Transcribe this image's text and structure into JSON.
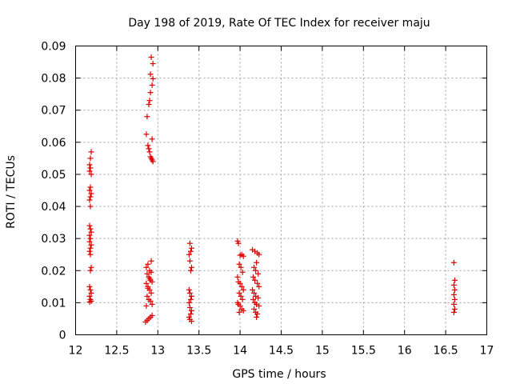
{
  "chart_data": {
    "type": "scatter",
    "title": "Day 198 of 2019, Rate Of TEC Index for receiver maju",
    "xlabel": "GPS time / hours",
    "ylabel": "ROTI / TECUs",
    "xlim": [
      12,
      17
    ],
    "ylim": [
      0,
      0.09
    ],
    "grid": true,
    "marker": "+",
    "marker_color": "#dd0000",
    "x_ticks": [
      {
        "value": 12,
        "label": "12"
      },
      {
        "value": 12.5,
        "label": "12.5"
      },
      {
        "value": 13,
        "label": "13"
      },
      {
        "value": 13.5,
        "label": "13.5"
      },
      {
        "value": 14,
        "label": "14"
      },
      {
        "value": 14.5,
        "label": "14.5"
      },
      {
        "value": 15,
        "label": "15"
      },
      {
        "value": 15.5,
        "label": "15.5"
      },
      {
        "value": 16,
        "label": "16"
      },
      {
        "value": 16.5,
        "label": "16.5"
      },
      {
        "value": 17,
        "label": "17"
      }
    ],
    "y_ticks": [
      {
        "value": 0,
        "label": "0"
      },
      {
        "value": 0.01,
        "label": "0.01"
      },
      {
        "value": 0.02,
        "label": "0.02"
      },
      {
        "value": 0.03,
        "label": "0.03"
      },
      {
        "value": 0.04,
        "label": "0.04"
      },
      {
        "value": 0.05,
        "label": "0.05"
      },
      {
        "value": 0.06,
        "label": "0.06"
      },
      {
        "value": 0.07,
        "label": "0.07"
      },
      {
        "value": 0.08,
        "label": "0.08"
      },
      {
        "value": 0.09,
        "label": "0.09"
      }
    ],
    "series": [
      {
        "name": "ROTI",
        "points": [
          [
            12.19,
            0.057
          ],
          [
            12.18,
            0.055
          ],
          [
            12.17,
            0.053
          ],
          [
            12.18,
            0.052
          ],
          [
            12.17,
            0.051
          ],
          [
            12.19,
            0.05
          ],
          [
            12.18,
            0.046
          ],
          [
            12.17,
            0.045
          ],
          [
            12.19,
            0.044
          ],
          [
            12.18,
            0.043
          ],
          [
            12.17,
            0.042
          ],
          [
            12.18,
            0.04
          ],
          [
            12.17,
            0.034
          ],
          [
            12.18,
            0.033
          ],
          [
            12.19,
            0.032
          ],
          [
            12.17,
            0.031
          ],
          [
            12.18,
            0.03
          ],
          [
            12.17,
            0.029
          ],
          [
            12.19,
            0.028
          ],
          [
            12.18,
            0.027
          ],
          [
            12.17,
            0.026
          ],
          [
            12.18,
            0.025
          ],
          [
            12.19,
            0.021
          ],
          [
            12.18,
            0.02
          ],
          [
            12.17,
            0.015
          ],
          [
            12.18,
            0.014
          ],
          [
            12.19,
            0.013
          ],
          [
            12.17,
            0.012
          ],
          [
            12.18,
            0.011
          ],
          [
            12.19,
            0.0105
          ],
          [
            12.17,
            0.0102
          ],
          [
            12.92,
            0.0865
          ],
          [
            12.94,
            0.0845
          ],
          [
            12.91,
            0.0812
          ],
          [
            12.94,
            0.0798
          ],
          [
            12.93,
            0.0778
          ],
          [
            12.91,
            0.0755
          ],
          [
            12.9,
            0.073
          ],
          [
            12.89,
            0.0718
          ],
          [
            12.87,
            0.068
          ],
          [
            12.86,
            0.0625
          ],
          [
            12.93,
            0.061
          ],
          [
            12.88,
            0.059
          ],
          [
            12.89,
            0.058
          ],
          [
            12.9,
            0.057
          ],
          [
            12.91,
            0.0555
          ],
          [
            12.92,
            0.055
          ],
          [
            12.93,
            0.0545
          ],
          [
            12.94,
            0.054
          ],
          [
            12.86,
            0.021
          ],
          [
            12.88,
            0.022
          ],
          [
            12.9,
            0.02
          ],
          [
            12.92,
            0.023
          ],
          [
            12.87,
            0.019
          ],
          [
            12.89,
            0.018
          ],
          [
            12.91,
            0.017
          ],
          [
            12.93,
            0.0165
          ],
          [
            12.86,
            0.016
          ],
          [
            12.88,
            0.015
          ],
          [
            12.9,
            0.014
          ],
          [
            12.92,
            0.013
          ],
          [
            12.87,
            0.012
          ],
          [
            12.89,
            0.011
          ],
          [
            12.91,
            0.0105
          ],
          [
            12.93,
            0.0095
          ],
          [
            12.86,
            0.009
          ],
          [
            12.88,
            0.0145
          ],
          [
            12.9,
            0.0175
          ],
          [
            12.92,
            0.0195
          ],
          [
            12.85,
            0.004
          ],
          [
            12.87,
            0.0045
          ],
          [
            12.89,
            0.005
          ],
          [
            12.91,
            0.0055
          ],
          [
            12.93,
            0.006
          ],
          [
            13.39,
            0.0285
          ],
          [
            13.41,
            0.027
          ],
          [
            13.4,
            0.026
          ],
          [
            13.38,
            0.025
          ],
          [
            13.39,
            0.023
          ],
          [
            13.41,
            0.021
          ],
          [
            13.4,
            0.02
          ],
          [
            13.38,
            0.014
          ],
          [
            13.39,
            0.013
          ],
          [
            13.41,
            0.012
          ],
          [
            13.4,
            0.011
          ],
          [
            13.38,
            0.01
          ],
          [
            13.39,
            0.0085
          ],
          [
            13.41,
            0.0075
          ],
          [
            13.4,
            0.0065
          ],
          [
            13.38,
            0.0055
          ],
          [
            13.39,
            0.0048
          ],
          [
            13.41,
            0.0042
          ],
          [
            13.97,
            0.0292
          ],
          [
            13.98,
            0.0285
          ],
          [
            14.0,
            0.0248
          ],
          [
            14.02,
            0.025
          ],
          [
            14.04,
            0.0245
          ],
          [
            13.99,
            0.022
          ],
          [
            14.01,
            0.021
          ],
          [
            14.03,
            0.0195
          ],
          [
            13.97,
            0.018
          ],
          [
            13.98,
            0.0165
          ],
          [
            14.0,
            0.016
          ],
          [
            14.02,
            0.015
          ],
          [
            14.04,
            0.014
          ],
          [
            13.99,
            0.013
          ],
          [
            14.01,
            0.012
          ],
          [
            14.03,
            0.011
          ],
          [
            13.97,
            0.01
          ],
          [
            13.98,
            0.0095
          ],
          [
            14.0,
            0.009
          ],
          [
            14.02,
            0.008
          ],
          [
            14.04,
            0.0075
          ],
          [
            13.99,
            0.007
          ],
          [
            14.15,
            0.0265
          ],
          [
            14.18,
            0.026
          ],
          [
            14.21,
            0.0255
          ],
          [
            14.23,
            0.025
          ],
          [
            14.2,
            0.0225
          ],
          [
            14.17,
            0.021
          ],
          [
            14.19,
            0.02
          ],
          [
            14.22,
            0.019
          ],
          [
            14.16,
            0.018
          ],
          [
            14.18,
            0.017
          ],
          [
            14.21,
            0.016
          ],
          [
            14.23,
            0.015
          ],
          [
            14.15,
            0.014
          ],
          [
            14.17,
            0.013
          ],
          [
            14.19,
            0.012
          ],
          [
            14.22,
            0.0115
          ],
          [
            14.16,
            0.011
          ],
          [
            14.18,
            0.01
          ],
          [
            14.2,
            0.0095
          ],
          [
            14.23,
            0.009
          ],
          [
            14.17,
            0.008
          ],
          [
            14.19,
            0.007
          ],
          [
            14.21,
            0.0065
          ],
          [
            14.2,
            0.0055
          ],
          [
            16.6,
            0.0225
          ],
          [
            16.61,
            0.017
          ],
          [
            16.6,
            0.0155
          ],
          [
            16.61,
            0.014
          ],
          [
            16.6,
            0.0125
          ],
          [
            16.61,
            0.011
          ],
          [
            16.6,
            0.0095
          ],
          [
            16.61,
            0.008
          ],
          [
            16.6,
            0.007
          ]
        ]
      }
    ]
  }
}
